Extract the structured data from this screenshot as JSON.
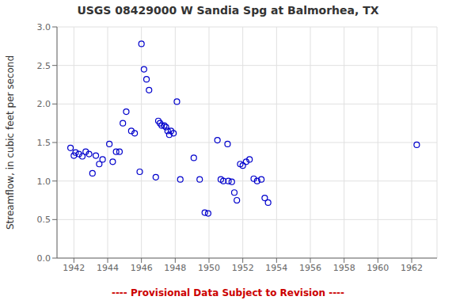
{
  "chart_data": {
    "type": "scatter",
    "title": "USGS 08429000 W Sandia Spg at Balmorhea, TX",
    "y_label": "Streamflow, in cubic feet per second",
    "annotations": [
      {
        "text": "---- Provisional Data Subject to Revision ----",
        "color": "#cc0000"
      }
    ],
    "color": "#0000cc",
    "marker": "hollow_circle",
    "grid": true,
    "xlim": [
      1941.0,
      1963.5
    ],
    "ylim": [
      0.0,
      3.0
    ],
    "xticks": [
      1942,
      1944,
      1946,
      1948,
      1950,
      1952,
      1954,
      1956,
      1958,
      1960,
      1962
    ],
    "yticks": [
      {
        "value": 0.0,
        "label": "0.0"
      },
      0.5,
      {
        "value": 1.0,
        "label": "1.0"
      },
      1.5,
      {
        "value": 2.0,
        "label": "2.0"
      },
      2.5,
      {
        "value": 3.0,
        "label": "3.0"
      }
    ],
    "x": [
      1941.8,
      1942.0,
      1942.1,
      1942.3,
      1942.5,
      1942.7,
      1942.9,
      1943.1,
      1943.3,
      1943.5,
      1943.7,
      1944.1,
      1944.3,
      1944.5,
      1944.7,
      1944.9,
      1945.1,
      1945.4,
      1945.6,
      1945.9,
      1946.0,
      1946.15,
      1946.3,
      1946.45,
      1946.85,
      1947.0,
      1947.1,
      1947.2,
      1947.35,
      1947.45,
      1947.55,
      1947.65,
      1947.75,
      1947.9,
      1948.1,
      1948.3,
      1949.1,
      1949.45,
      1949.75,
      1949.95,
      1950.5,
      1950.7,
      1950.85,
      1951.1,
      1951.15,
      1951.35,
      1951.5,
      1951.65,
      1951.85,
      1952.0,
      1952.2,
      1952.4,
      1952.65,
      1952.85,
      1953.1,
      1953.3,
      1953.5,
      1962.3
    ],
    "values": [
      1.43,
      1.33,
      1.37,
      1.35,
      1.32,
      1.38,
      1.35,
      1.1,
      1.33,
      1.22,
      1.28,
      1.48,
      1.25,
      1.38,
      1.38,
      1.75,
      1.9,
      1.65,
      1.62,
      1.12,
      2.78,
      2.45,
      2.32,
      2.18,
      1.05,
      1.78,
      1.75,
      1.72,
      1.72,
      1.7,
      1.65,
      1.6,
      1.65,
      1.62,
      2.03,
      1.02,
      1.3,
      1.02,
      0.59,
      0.58,
      1.53,
      1.02,
      1.0,
      1.48,
      1.0,
      0.99,
      0.85,
      0.75,
      1.22,
      1.2,
      1.25,
      1.28,
      1.03,
      1.0,
      1.02,
      0.78,
      0.72,
      1.47
    ]
  }
}
